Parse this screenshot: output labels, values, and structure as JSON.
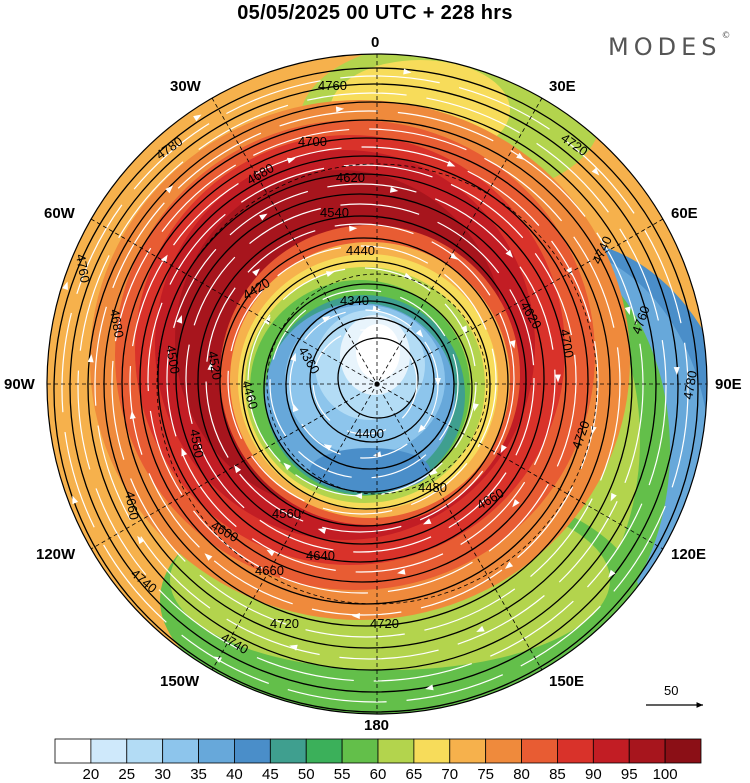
{
  "title": "05/05/2025  00 UTC  + 228 hrs",
  "logo": {
    "text": "MODES",
    "mark": "©"
  },
  "longitude_labels": [
    "0",
    "30E",
    "60E",
    "90E",
    "120E",
    "150E",
    "180",
    "150W",
    "120W",
    "90W",
    "60W",
    "30W"
  ],
  "colorbar": {
    "labels": [
      "20",
      "25",
      "30",
      "35",
      "40",
      "45",
      "50",
      "55",
      "60",
      "65",
      "70",
      "75",
      "80",
      "85",
      "90",
      "95",
      "100"
    ],
    "colors": [
      "#ffffff",
      "#cfe9fb",
      "#b3dcf5",
      "#8dc5ec",
      "#67a8da",
      "#4a8ec9",
      "#3f9f8f",
      "#3bb05a",
      "#63bf4a",
      "#b3d44d",
      "#f7dc5a",
      "#f6b14c",
      "#ef8a3c",
      "#e85c33",
      "#d9322a",
      "#c21d24",
      "#a7151d",
      "#8b0f16"
    ]
  },
  "reference_vector": {
    "label": "50"
  },
  "contour_labels": [
    "4760",
    "4780",
    "4700",
    "4680",
    "4620",
    "4540",
    "4440",
    "4420",
    "4340",
    "4360",
    "4460",
    "4520",
    "4500",
    "4580",
    "4400",
    "4480",
    "4560",
    "4600",
    "4640",
    "4660",
    "4720",
    "4740",
    "4660",
    "4620",
    "4700",
    "4720",
    "4740",
    "4760",
    "4780",
    "4720",
    "4660",
    "4680",
    "4760",
    "4740",
    "4720"
  ]
}
